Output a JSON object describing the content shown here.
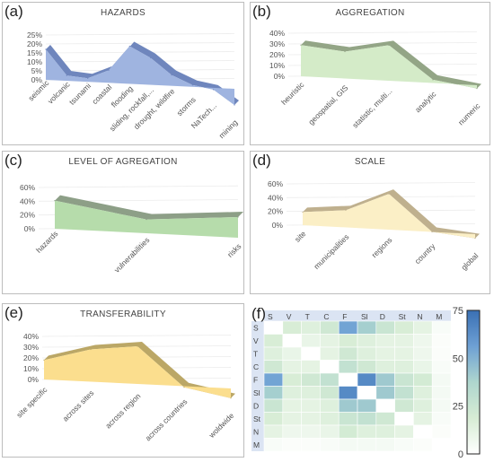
{
  "panels": [
    {
      "id": "a",
      "label": "(a)",
      "title": "HAZARDS",
      "color": "#9fb4e0",
      "top_color": "#6f86bd",
      "chart_data": {
        "type": "area",
        "categories": [
          "seismic",
          "volcanic",
          "tsunami",
          "coastal",
          "flooding",
          "sliding, rockfall,...",
          "drought, wildfire",
          "storms",
          "NaTech...",
          "mining"
        ],
        "values": [
          17,
          3,
          2,
          7,
          21,
          15,
          6,
          1,
          -1,
          -9
        ],
        "yticks": [
          "25%",
          "20%",
          "15%",
          "10%",
          "5%",
          "0%"
        ],
        "ylim": [
          0,
          25
        ]
      }
    },
    {
      "id": "b",
      "label": "(b)",
      "title": "AGGREGATION",
      "color": "#d4ebc8",
      "top_color": "#93a586",
      "chart_data": {
        "type": "area",
        "categories": [
          "heuristic",
          "geospatial, GIS",
          "statistic, multi...",
          "analytic",
          "numeric"
        ],
        "values": [
          29,
          25,
          33,
          3,
          -3
        ],
        "yticks": [
          "40%",
          "30%",
          "20%",
          "10%",
          "0%"
        ],
        "ylim": [
          0,
          40
        ]
      }
    },
    {
      "id": "c",
      "label": "(c)",
      "title": "LEVEL OF AGREGATION",
      "color": "#b6dcab",
      "top_color": "#8d9f87",
      "chart_data": {
        "type": "area",
        "categories": [
          "hazards",
          "vulnerabilities",
          "risks"
        ],
        "values": [
          41,
          20,
          30
        ],
        "yticks": [
          "60%",
          "40%",
          "20%",
          "0%"
        ],
        "ylim": [
          0,
          60
        ]
      }
    },
    {
      "id": "d",
      "label": "(d)",
      "title": "SCALE",
      "color": "#fbefc6",
      "top_color": "#bfb08e",
      "chart_data": {
        "type": "area",
        "categories": [
          "site",
          "municipalities",
          "regions",
          "country",
          "global"
        ],
        "values": [
          19,
          25,
          52,
          0,
          -6
        ],
        "yticks": [
          "60%",
          "40%",
          "20%",
          "0%"
        ],
        "ylim": [
          0,
          60
        ]
      }
    },
    {
      "id": "e",
      "label": "(e)",
      "title": "TRANSFERABILITY",
      "color": "#fbde8e",
      "top_color": "#bba766",
      "chart_data": {
        "type": "area",
        "categories": [
          "site specific",
          "across sites",
          "across region",
          "across countries",
          "woldwide"
        ],
        "values": [
          18,
          30,
          35,
          -1,
          -9
        ],
        "yticks": [
          "40%",
          "30%",
          "20%",
          "10%",
          "0%"
        ],
        "ylim": [
          0,
          40
        ]
      }
    }
  ],
  "heatmap": {
    "label": "(f)",
    "chart_data": {
      "type": "heatmap",
      "x_labels": [
        "S",
        "V",
        "T",
        "C",
        "F",
        "Sl",
        "D",
        "St",
        "N",
        "M"
      ],
      "y_labels": [
        "S",
        "V",
        "T",
        "C",
        "F",
        "Sl",
        "D",
        "St",
        "N",
        "M"
      ],
      "values": [
        [
          0,
          18,
          15,
          22,
          55,
          40,
          25,
          18,
          12,
          3
        ],
        [
          18,
          0,
          10,
          12,
          18,
          15,
          12,
          12,
          8,
          2
        ],
        [
          15,
          10,
          0,
          12,
          22,
          15,
          12,
          12,
          8,
          2
        ],
        [
          22,
          12,
          12,
          0,
          28,
          22,
          15,
          15,
          10,
          3
        ],
        [
          55,
          18,
          22,
          28,
          0,
          65,
          42,
          25,
          20,
          5
        ],
        [
          40,
          15,
          15,
          22,
          65,
          0,
          42,
          28,
          15,
          5
        ],
        [
          25,
          12,
          12,
          15,
          42,
          42,
          0,
          22,
          15,
          5
        ],
        [
          18,
          12,
          12,
          15,
          25,
          28,
          22,
          0,
          12,
          3
        ],
        [
          12,
          8,
          8,
          10,
          20,
          15,
          15,
          12,
          0,
          2
        ],
        [
          3,
          2,
          2,
          3,
          5,
          5,
          5,
          3,
          2,
          0
        ]
      ],
      "zlim": [
        0,
        75
      ],
      "colorbar_ticks": [
        "75",
        "50",
        "25",
        "0"
      ]
    }
  }
}
